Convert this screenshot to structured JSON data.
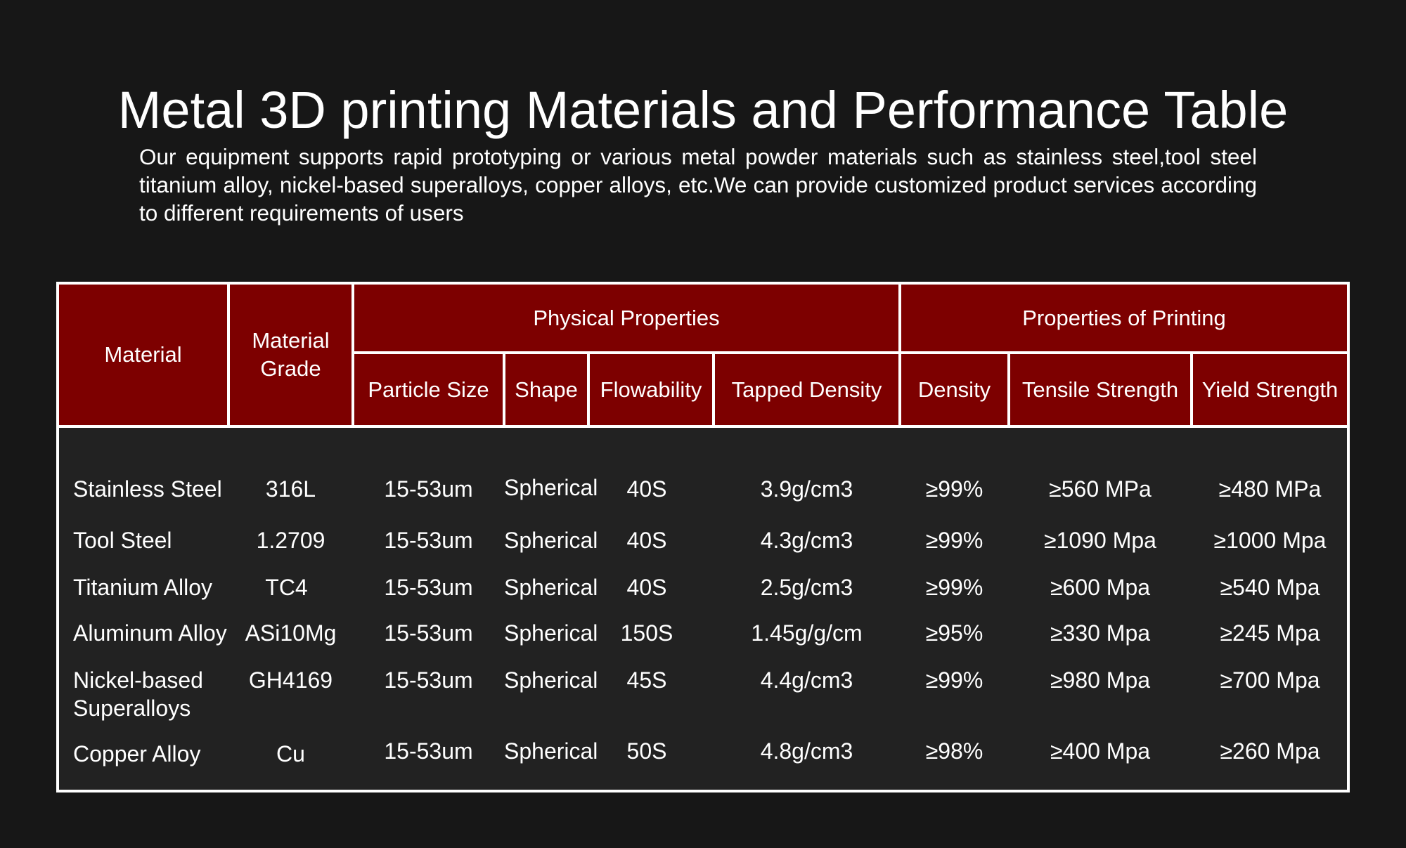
{
  "title": "Metal 3D printing Materials and Performance Table",
  "intro": "Our equipment supports rapid prototyping or various metal powder materials such as stainless steel,tool steel titanium alloy, nickel-based superalloys, copper alloys, etc.We can provide customized product services according to different requirements of users",
  "colors": {
    "background": "#171717",
    "header_fill": "#7d0000",
    "table_body": "#222222",
    "border": "#ffffff",
    "text": "#ffffff"
  },
  "table": {
    "group_headers": {
      "material": "Material",
      "material_grade_line1": "Material",
      "material_grade_line2": "Grade",
      "physical": "Physical Properties",
      "printing": "Properties of Printing"
    },
    "sub_headers": {
      "particle_size": "Particle Size",
      "shape": "Shape",
      "flowability": "Flowability",
      "tapped_density": "Tapped Density",
      "density": "Density",
      "tensile_strength": "Tensile Strength",
      "yield_strength": "Yield Strength"
    },
    "rows": [
      {
        "material": "Stainless Steel",
        "material_line2": "",
        "grade": "316L",
        "particle_size": "15-53um",
        "shape": "Spherical",
        "flowability": "40S",
        "tapped_density": "3.9g/cm3",
        "density": "≥99%",
        "tensile_strength": "≥560 MPa",
        "yield_strength": "≥480 MPa"
      },
      {
        "material": "Tool Steel",
        "material_line2": "",
        "grade": "1.2709",
        "particle_size": "15-53um",
        "shape": "Spherical",
        "flowability": "40S",
        "tapped_density": "4.3g/cm3",
        "density": "≥99%",
        "tensile_strength": "≥1090 Mpa",
        "yield_strength": "≥1000 Mpa"
      },
      {
        "material": "Titanium Alloy",
        "material_line2": "",
        "grade": "TC4",
        "particle_size": "15-53um",
        "shape": "Spherical",
        "flowability": "40S",
        "tapped_density": "2.5g/cm3",
        "density": "≥99%",
        "tensile_strength": "≥600 Mpa",
        "yield_strength": "≥540 Mpa"
      },
      {
        "material": "Aluminum Alloy",
        "material_line2": "",
        "grade": "ASi10Mg",
        "particle_size": "15-53um",
        "shape": "Spherical",
        "flowability": "150S",
        "tapped_density": "1.45g/g/cm",
        "density": "≥95%",
        "tensile_strength": "≥330 Mpa",
        "yield_strength": "≥245 Mpa"
      },
      {
        "material": "Nickel-based",
        "material_line2": "Superalloys",
        "grade": "GH4169",
        "particle_size": "15-53um",
        "shape": "Spherical",
        "flowability": "45S",
        "tapped_density": "4.4g/cm3",
        "density": "≥99%",
        "tensile_strength": "≥980 Mpa",
        "yield_strength": "≥700 Mpa"
      },
      {
        "material": "Copper Alloy",
        "material_line2": "",
        "grade": "Cu",
        "particle_size": "15-53um",
        "shape": "Spherical",
        "flowability": "50S",
        "tapped_density": "4.8g/cm3",
        "density": "≥98%",
        "tensile_strength": "≥400 Mpa",
        "yield_strength": "≥260 Mpa"
      }
    ]
  }
}
